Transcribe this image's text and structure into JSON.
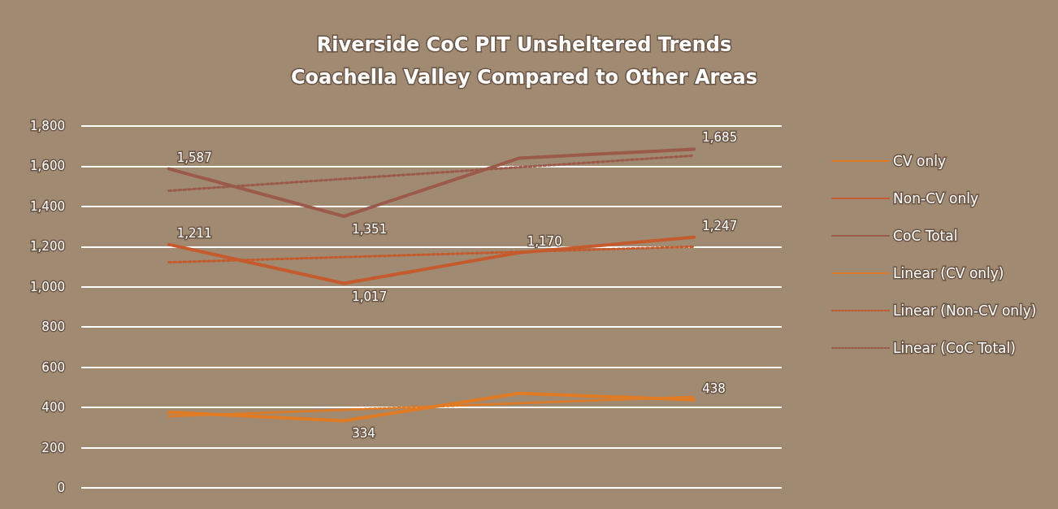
{
  "chart_data": {
    "type": "line",
    "title": "Riverside CoC PIT Unsheltered Trends\nCoachella Valley Compared to Other Areas",
    "categories": [
      null,
      null,
      null,
      null
    ],
    "ylim": [
      0,
      1800
    ],
    "yticks": [
      0,
      {
        "value": 200,
        "label": "200"
      },
      {
        "value": 400,
        "label": "400"
      },
      {
        "value": 600,
        "label": "600"
      },
      {
        "value": 800,
        "label": "800"
      },
      {
        "value": 1000,
        "label": "1,000"
      },
      {
        "value": 1200,
        "label": "1,200"
      },
      {
        "value": 1400,
        "label": "1,400"
      },
      {
        "value": 1600,
        "label": "1,600"
      },
      {
        "value": 1800,
        "label": "1,800"
      }
    ],
    "grid": "y",
    "legend": "right",
    "marker": "none",
    "series": [
      {
        "name": "CV only",
        "color": "#e07b24",
        "values": [
          376,
          334,
          470,
          438
        ],
        "value_labels": [
          null,
          "334",
          null,
          "438"
        ],
        "line_style": "solid"
      },
      {
        "name": "Non-CV only",
        "color": "#c55a2c",
        "values": [
          1211,
          1017,
          1170,
          1247
        ],
        "value_labels": [
          "1,211",
          "1,017",
          "1,170",
          "1,247"
        ],
        "line_style": "solid"
      },
      {
        "name": "CoC Total",
        "color": "#9b5a4a",
        "values": [
          1587,
          1351,
          1640,
          1685
        ],
        "value_labels": [
          "1,587",
          "1,351",
          null,
          "1,685"
        ],
        "line_style": "solid"
      },
      {
        "name": "Linear (CV only)",
        "color": "#e07b24",
        "values": [
          356,
          388,
          421,
          453
        ],
        "line_style": "dotted"
      },
      {
        "name": "Linear (Non-CV only)",
        "color": "#c55a2c",
        "values": [
          1122,
          1148,
          1174,
          1200
        ],
        "line_style": "dotted"
      },
      {
        "name": "Linear (CoC Total)",
        "color": "#9b5a4a",
        "values": [
          1478,
          1537,
          1595,
          1653
        ],
        "line_style": "dotted"
      }
    ]
  }
}
